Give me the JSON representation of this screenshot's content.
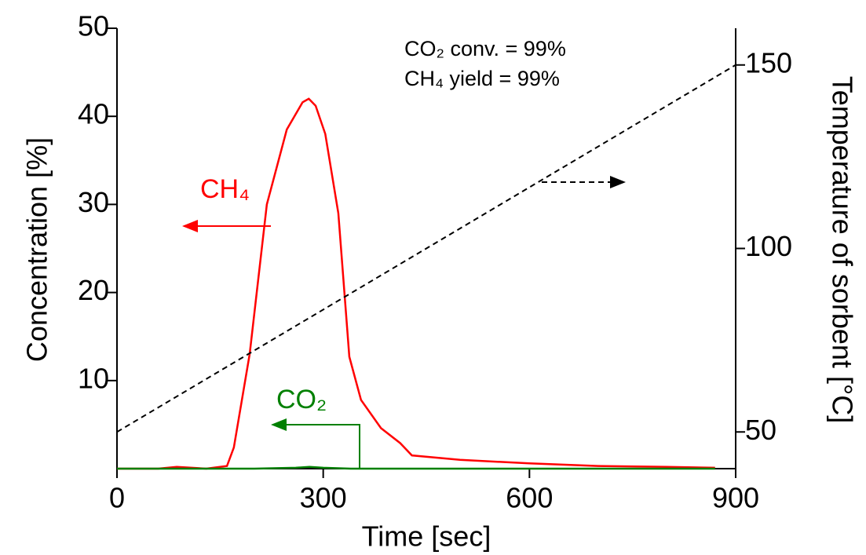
{
  "chart_data": {
    "type": "line",
    "x_label": "Time [sec]",
    "y_label": "Concentration [%]",
    "y2_label": "Temperature of sorbent [°C]",
    "annotations": [
      "CO₂ conv. = 99%",
      "CH₄ yield = 99%"
    ],
    "xlim": [
      0,
      900
    ],
    "ylim": [
      0,
      50
    ],
    "y2lim": [
      40,
      160
    ],
    "xticks": [
      0,
      300,
      600,
      900
    ],
    "yticks": [
      10,
      20,
      30,
      40,
      50
    ],
    "y2ticks": [
      50,
      100,
      150
    ],
    "series": [
      {
        "name": "CH₄",
        "color": "#ff0000",
        "x": [
          0,
          60,
          87,
          130,
          160,
          170,
          193,
          218,
          247,
          270,
          279,
          289,
          303,
          322,
          338,
          355,
          384,
          412,
          429,
          499,
          600,
          700,
          800,
          870
        ],
        "values": [
          0,
          0,
          0.2,
          0,
          0.3,
          2.4,
          13,
          30,
          38.5,
          41.6,
          42,
          41.2,
          38,
          29,
          12.7,
          7.8,
          4.6,
          2.9,
          1.5,
          1.0,
          0.6,
          0.3,
          0.2,
          0.1
        ]
      },
      {
        "name": "CO₂",
        "color": "#008000",
        "x": [
          0,
          200,
          260,
          280,
          300,
          340,
          870
        ],
        "values": [
          0,
          0,
          0.1,
          0.2,
          0.1,
          0,
          0
        ]
      },
      {
        "color": "#000000",
        "axis": "y2",
        "style": "dashed",
        "x": [
          0,
          900
        ],
        "values": [
          50,
          150
        ]
      }
    ]
  }
}
